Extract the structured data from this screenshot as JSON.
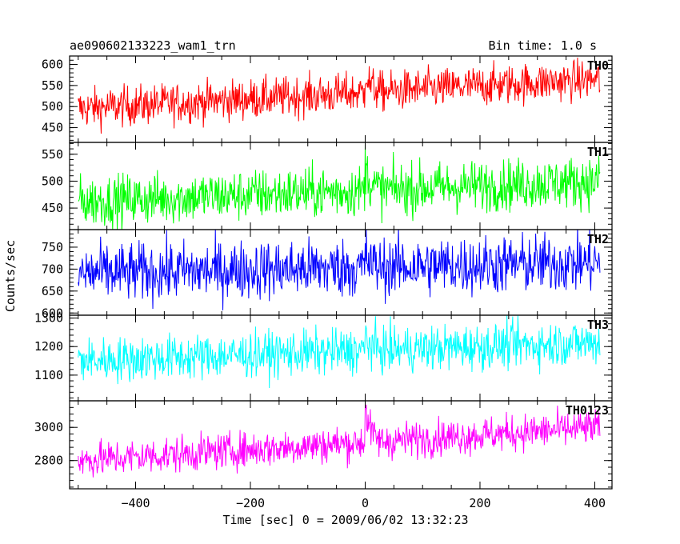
{
  "header": {
    "title": "ae090602133223_wam1_trn",
    "bin_time": "Bin time: 1.0 s"
  },
  "chart_data": {
    "type": "line",
    "xlabel": "Time [sec] 0 = 2009/06/02 13:32:23",
    "ylabel": "Counts/sec",
    "xlim": [
      -515,
      430
    ],
    "x_ticks": [
      -400,
      -200,
      0,
      200,
      400
    ],
    "x_step": 1,
    "x_start": -500,
    "x_end": 409,
    "panels": [
      {
        "name": "TH0",
        "color": "#ff0000",
        "ylim": [
          415,
          620
        ],
        "y_ticks": [
          450,
          500,
          550,
          600
        ],
        "base_start": 495,
        "base_end": 565,
        "noise": 24,
        "burst": 55
      },
      {
        "name": "TH1",
        "color": "#00ff00",
        "ylim": [
          410,
          572
        ],
        "y_ticks": [
          450,
          500,
          550
        ],
        "base_start": 462,
        "base_end": 500,
        "noise": 24,
        "burst": 50
      },
      {
        "name": "TH2",
        "color": "#0000ff",
        "ylim": [
          595,
          790
        ],
        "y_ticks": [
          600,
          650,
          700,
          750
        ],
        "base_start": 690,
        "base_end": 715,
        "noise": 34,
        "burst": 30
      },
      {
        "name": "TH3",
        "color": "#00ffff",
        "ylim": [
          1010,
          1310
        ],
        "y_ticks": [
          1100,
          1200,
          1300
        ],
        "base_start": 1150,
        "base_end": 1215,
        "noise": 40,
        "burst": 60
      },
      {
        "name": "TH0123",
        "color": "#ff00ff",
        "ylim": [
          2630,
          3160
        ],
        "y_ticks": [
          2800,
          3000
        ],
        "base_start": 2800,
        "base_end": 3000,
        "noise": 55,
        "burst": 230
      }
    ]
  }
}
